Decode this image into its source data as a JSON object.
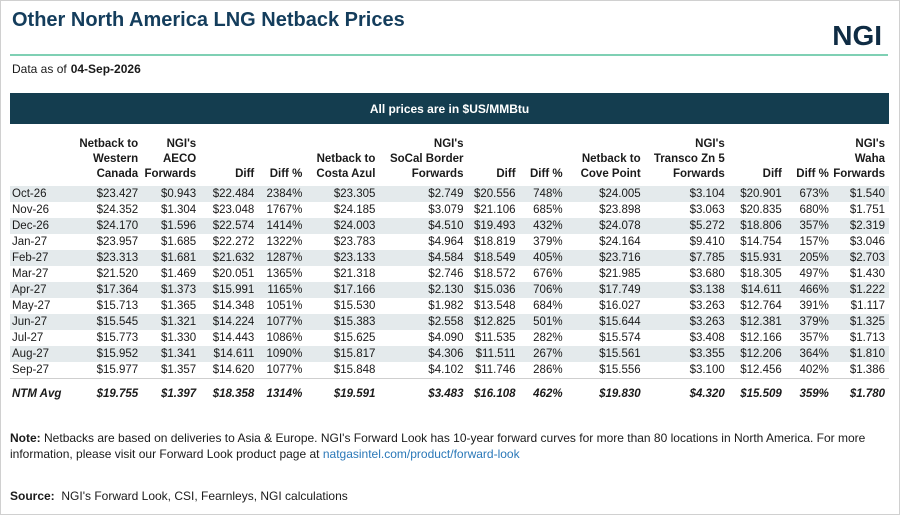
{
  "header": {
    "title": "Other North America LNG Netback Prices",
    "logo": "NGI",
    "as_of_label": "Data as of",
    "as_of_value": "04-Sep-2026"
  },
  "banner": "All prices are in $US/MMBtu",
  "columns": [
    [
      "Netback to",
      "Western",
      "Canada"
    ],
    [
      "NGI's",
      "AECO",
      "Forwards"
    ],
    [
      "Diff"
    ],
    [
      "Diff %"
    ],
    [
      "Netback to",
      "Costa Azul"
    ],
    [
      "NGI's",
      "SoCal Border",
      "Forwards"
    ],
    [
      "Diff"
    ],
    [
      "Diff %"
    ],
    [
      "Netback to",
      "Cove Point"
    ],
    [
      "NGI's",
      "Transco Zn 5",
      "Forwards"
    ],
    [
      "Diff"
    ],
    [
      "Diff %"
    ],
    [
      "NGI's",
      "Waha",
      "Forwards"
    ]
  ],
  "chart_data": {
    "type": "table",
    "title": "Other North America LNG Netback Prices",
    "rows": [
      [
        "Oct-26",
        "$23.427",
        "$0.943",
        "$22.484",
        "2384%",
        "$23.305",
        "$2.749",
        "$20.556",
        "748%",
        "$24.005",
        "$3.104",
        "$20.901",
        "673%",
        "$1.540"
      ],
      [
        "Nov-26",
        "$24.352",
        "$1.304",
        "$23.048",
        "1767%",
        "$24.185",
        "$3.079",
        "$21.106",
        "685%",
        "$23.898",
        "$3.063",
        "$20.835",
        "680%",
        "$1.751"
      ],
      [
        "Dec-26",
        "$24.170",
        "$1.596",
        "$22.574",
        "1414%",
        "$24.003",
        "$4.510",
        "$19.493",
        "432%",
        "$24.078",
        "$5.272",
        "$18.806",
        "357%",
        "$2.319"
      ],
      [
        "Jan-27",
        "$23.957",
        "$1.685",
        "$22.272",
        "1322%",
        "$23.783",
        "$4.964",
        "$18.819",
        "379%",
        "$24.164",
        "$9.410",
        "$14.754",
        "157%",
        "$3.046"
      ],
      [
        "Feb-27",
        "$23.313",
        "$1.681",
        "$21.632",
        "1287%",
        "$23.133",
        "$4.584",
        "$18.549",
        "405%",
        "$23.716",
        "$7.785",
        "$15.931",
        "205%",
        "$2.703"
      ],
      [
        "Mar-27",
        "$21.520",
        "$1.469",
        "$20.051",
        "1365%",
        "$21.318",
        "$2.746",
        "$18.572",
        "676%",
        "$21.985",
        "$3.680",
        "$18.305",
        "497%",
        "$1.430"
      ],
      [
        "Apr-27",
        "$17.364",
        "$1.373",
        "$15.991",
        "1165%",
        "$17.166",
        "$2.130",
        "$15.036",
        "706%",
        "$17.749",
        "$3.138",
        "$14.611",
        "466%",
        "$1.222"
      ],
      [
        "May-27",
        "$15.713",
        "$1.365",
        "$14.348",
        "1051%",
        "$15.530",
        "$1.982",
        "$13.548",
        "684%",
        "$16.027",
        "$3.263",
        "$12.764",
        "391%",
        "$1.117"
      ],
      [
        "Jun-27",
        "$15.545",
        "$1.321",
        "$14.224",
        "1077%",
        "$15.383",
        "$2.558",
        "$12.825",
        "501%",
        "$15.644",
        "$3.263",
        "$12.381",
        "379%",
        "$1.325"
      ],
      [
        "Jul-27",
        "$15.773",
        "$1.330",
        "$14.443",
        "1086%",
        "$15.625",
        "$4.090",
        "$11.535",
        "282%",
        "$15.574",
        "$3.408",
        "$12.166",
        "357%",
        "$1.713"
      ],
      [
        "Aug-27",
        "$15.952",
        "$1.341",
        "$14.611",
        "1090%",
        "$15.817",
        "$4.306",
        "$11.511",
        "267%",
        "$15.561",
        "$3.355",
        "$12.206",
        "364%",
        "$1.810"
      ],
      [
        "Sep-27",
        "$15.977",
        "$1.357",
        "$14.620",
        "1077%",
        "$15.848",
        "$4.102",
        "$11.746",
        "286%",
        "$15.556",
        "$3.100",
        "$12.456",
        "402%",
        "$1.386"
      ]
    ],
    "summary": [
      "NTM Avg",
      "$19.755",
      "$1.397",
      "$18.358",
      "1314%",
      "$19.591",
      "$3.483",
      "$16.108",
      "462%",
      "$19.830",
      "$4.320",
      "$15.509",
      "359%",
      "$1.780"
    ]
  },
  "note": {
    "label": "Note:",
    "text": "Netbacks are based on deliveries to Asia & Europe. NGI's Forward Look has 10-year forward curves for more than 80 locations in North America.  For more information, please visit our Forward Look product page at",
    "link": "natgasintel.com/product/forward-look"
  },
  "source": {
    "label": "Source:",
    "text": "NGI's Forward Look, CSI, Fearnleys, NGI calculations"
  },
  "colors": {
    "title": "#143d5c",
    "banner_bg": "#143d4f",
    "rule": "#7fd0b4",
    "row_shade": "#e4eaec",
    "link": "#2a78b8"
  }
}
